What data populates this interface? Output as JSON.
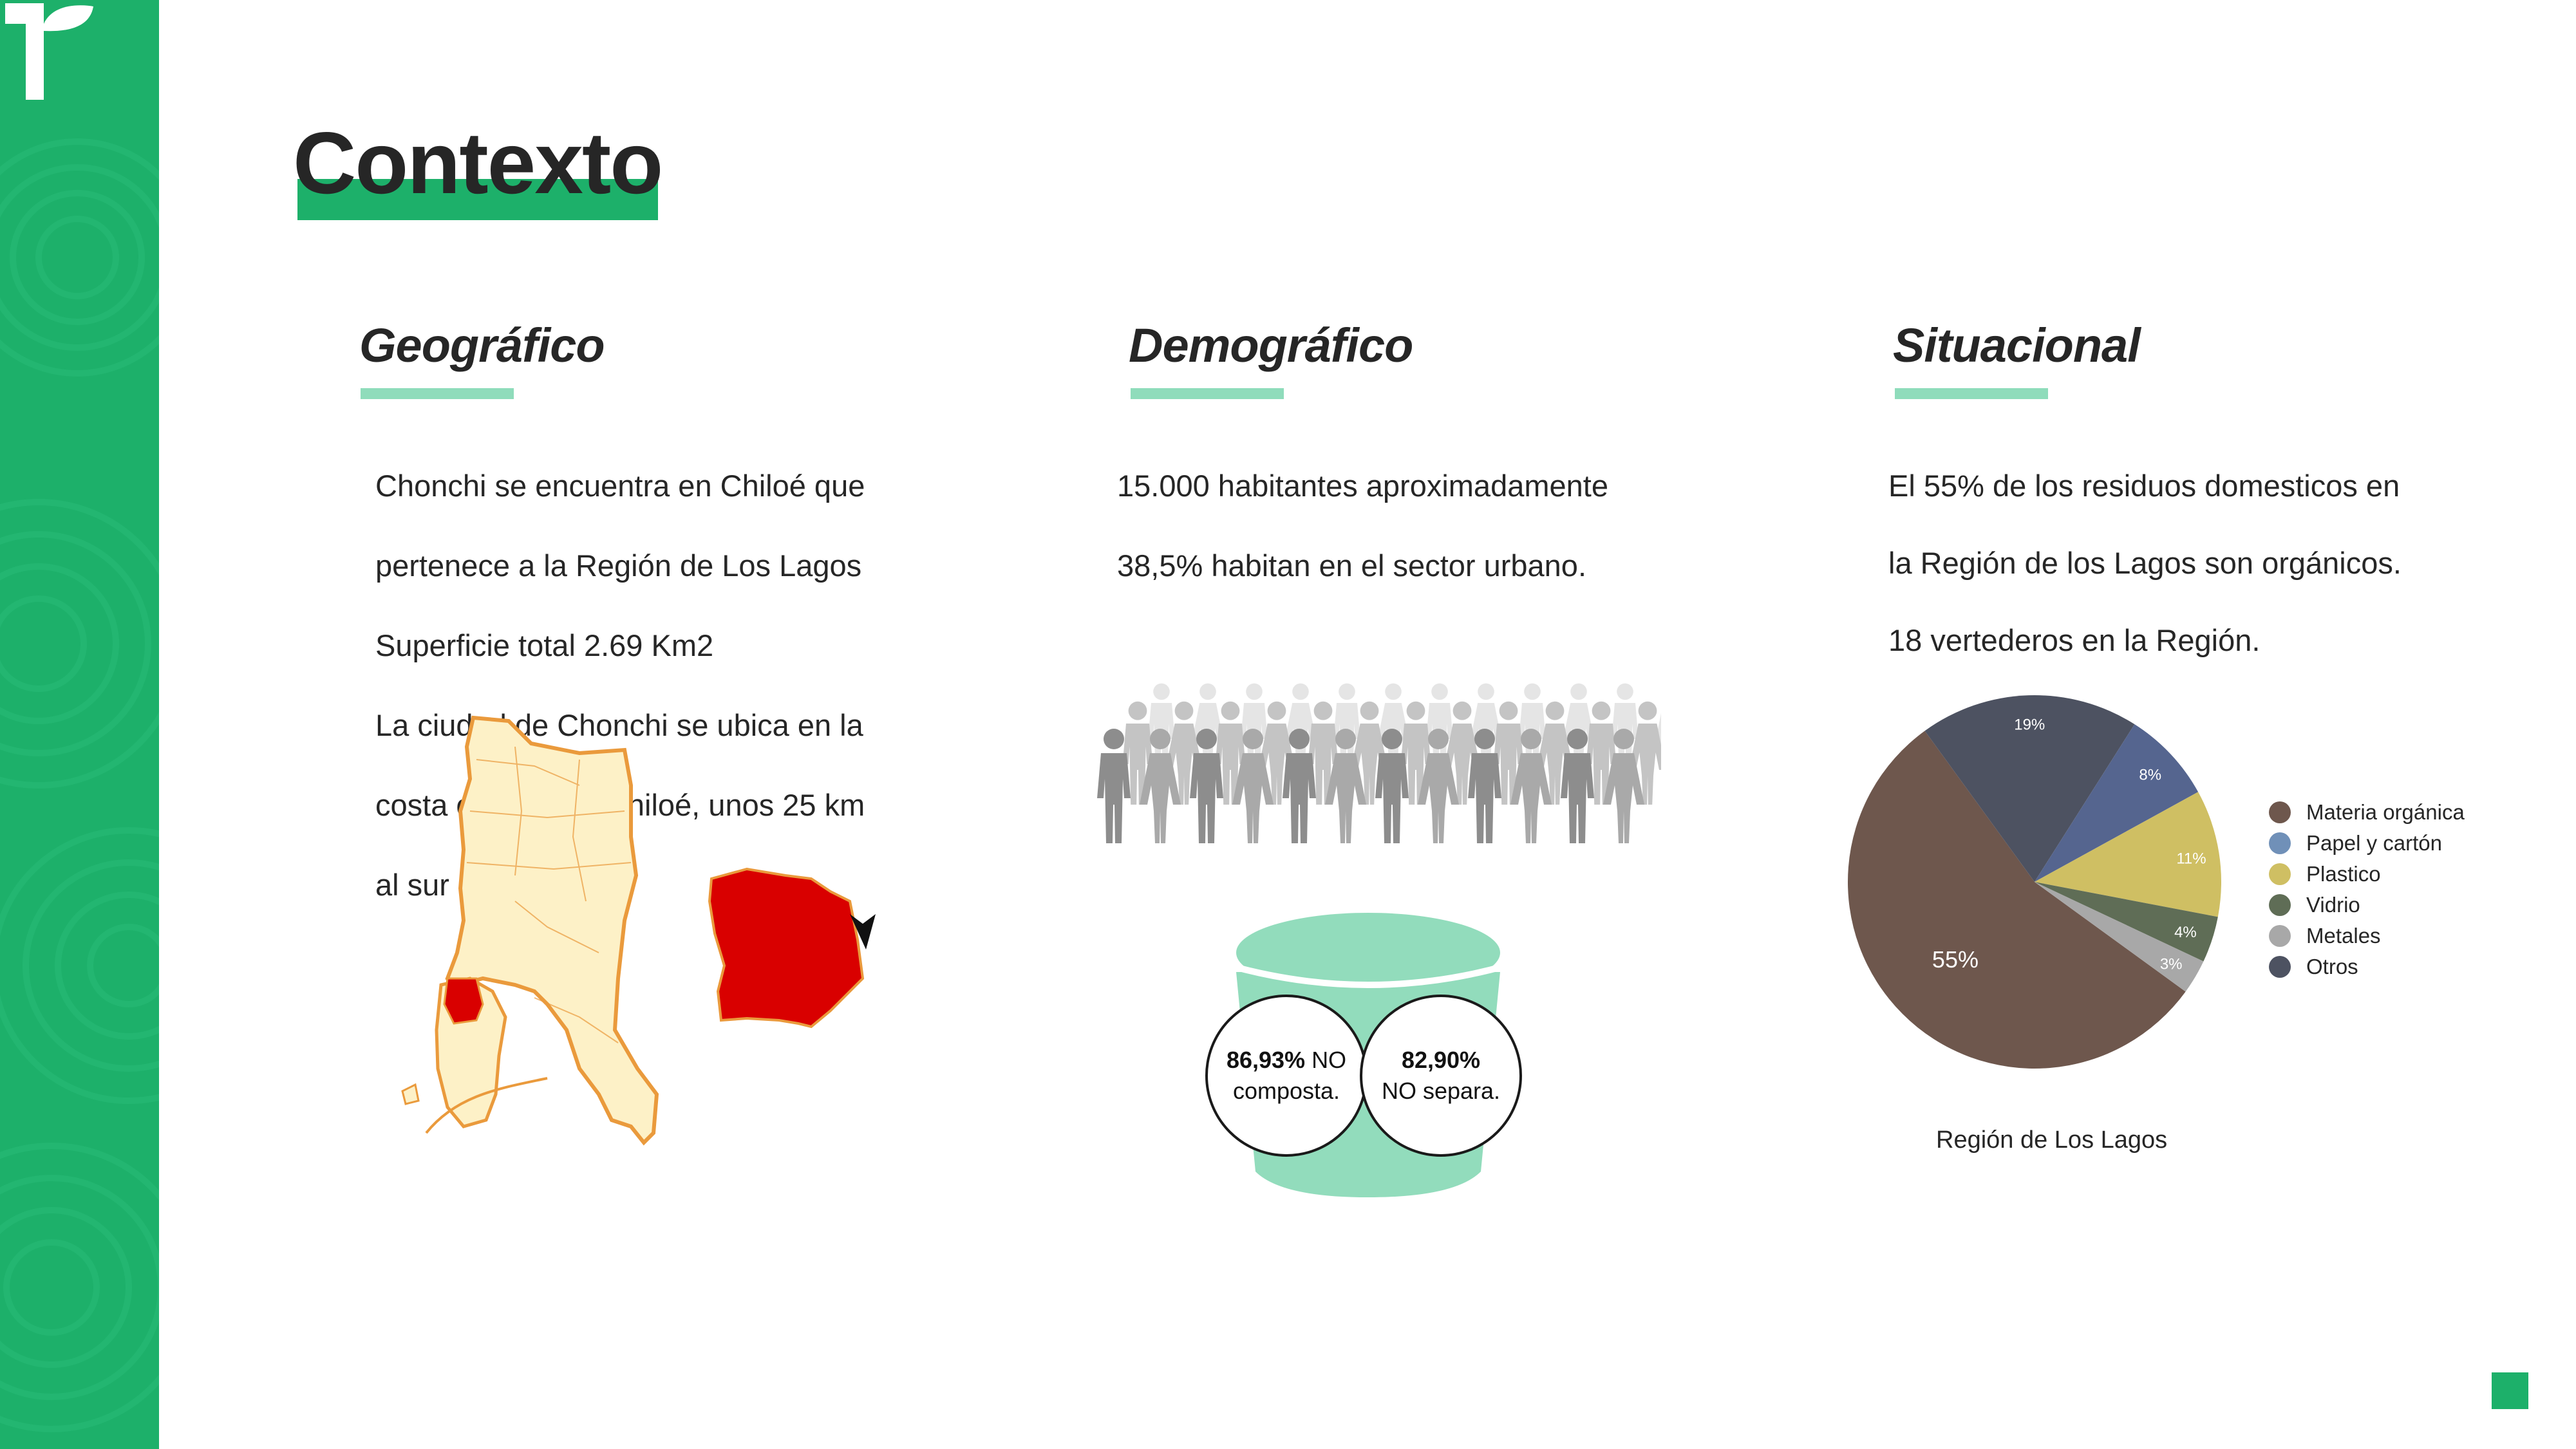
{
  "page": {
    "title": "Contexto"
  },
  "sections": {
    "geografico": {
      "title": "Geográfico",
      "lines": [
        "Chonchi se encuentra en Chiloé que",
        "pertenece a la Región de Los Lagos",
        "Superficie total 2.69 Km2",
        "La ciudad de Chonchi se ubica en la",
        "costa oriental de Chiloé, unos 25 km",
        "al sur de Castro."
      ],
      "map_colors": {
        "region": "#fdf1c7",
        "region_border": "#ea9a3c",
        "highlight": "#d90000"
      }
    },
    "demografico": {
      "title": "Demográfico",
      "lines": [
        "15.000 habitantes aproximadamente",
        "38,5% habitan en el sector urbano."
      ],
      "stat_compost": {
        "value": "86,93%",
        "text": "NO",
        "text2": "composta."
      },
      "stat_separa": {
        "value": "82,90%",
        "text": "NO separa."
      }
    },
    "situacional": {
      "title": "Situacional",
      "lines": [
        "El 55% de los residuos domesticos en",
        "la Región de los Lagos son orgánicos.",
        "18 vertederos en la Región."
      ],
      "chart_caption": "Región de Los Lagos"
    }
  },
  "chart_data": {
    "type": "pie",
    "title": "",
    "caption": "Región de Los Lagos",
    "legend_position": "right",
    "slices": [
      {
        "label": "Materia orgánica",
        "value": 55,
        "display": "55%",
        "color": "#6e574d"
      },
      {
        "label": "Otros",
        "value": 19,
        "display": "19%",
        "color": "#4d5261"
      },
      {
        "label": "Papel y cartón",
        "value": 8,
        "display": "8%",
        "color": "#55658f"
      },
      {
        "label": "Plastico",
        "value": 11,
        "display": "11%",
        "color": "#cfbf63"
      },
      {
        "label": "Vidrio",
        "value": 4,
        "display": "4%",
        "color": "#5f6d56"
      },
      {
        "label": "Metales",
        "value": 3,
        "display": "3%",
        "color": "#a8a8a8"
      }
    ],
    "legend": [
      {
        "label": "Materia orgánica",
        "color": "#6e574d"
      },
      {
        "label": "Papel y cartón",
        "color": "#7090b8"
      },
      {
        "label": "Plastico",
        "color": "#cfbf63"
      },
      {
        "label": "Vidrio",
        "color": "#5f6d56"
      },
      {
        "label": "Metales",
        "color": "#a8a8a8"
      },
      {
        "label": "Otros",
        "color": "#4d5261"
      }
    ]
  },
  "colors": {
    "brand_green": "#1db06a",
    "accent_light_green": "#8fdcbb"
  },
  "icons": {
    "logo": "brand-logo-icon",
    "people": "people-crowd-icon",
    "bucket": "compost-bucket-icon",
    "pointer": "location-arrow-icon"
  }
}
